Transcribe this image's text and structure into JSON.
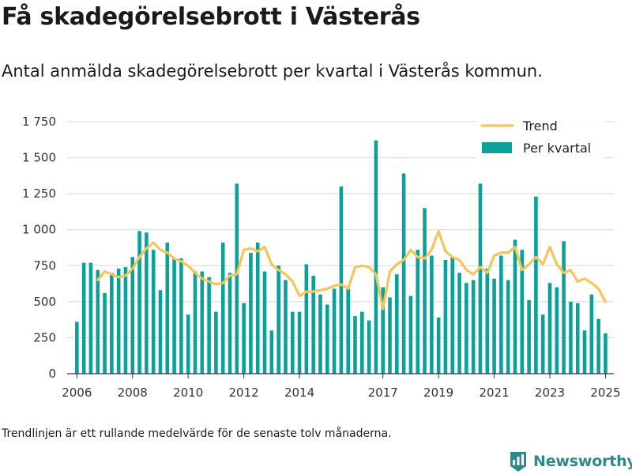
{
  "title": "Få skadegörelsebrott i Västerås",
  "subtitle": "Antal anmälda skadegörelsebrott per kvartal i Västerås kommun.",
  "footnote": "Trendlinjen är ett rullande medelvärde för de senaste tolv månaderna.",
  "brand": {
    "name": "Newsworthy",
    "icon": "newsworthy-logo-icon"
  },
  "colors": {
    "bar": "#0aa19a",
    "trend": "#f5c55a",
    "grid": "#d9d9d9",
    "axis": "#333333"
  },
  "chart_data": {
    "type": "bar",
    "title": "Få skadegörelsebrott i Västerås",
    "xlabel": "",
    "ylabel": "",
    "ylim": [
      0,
      1750
    ],
    "yticks": [
      0,
      250,
      500,
      750,
      1000,
      1250,
      1500,
      1750
    ],
    "ytick_labels": [
      "0",
      "250",
      "500",
      "750",
      "1 000",
      "1 250",
      "1 500",
      "1 750"
    ],
    "xlim": [
      2005.65,
      2025.3
    ],
    "xticks": [
      2006,
      2008,
      2010,
      2012,
      2014,
      2017,
      2019,
      2021,
      2023,
      2025
    ],
    "xtick_labels": [
      "2006",
      "2008",
      "2010",
      "2012",
      "2014",
      "2017",
      "2019",
      "2021",
      "2023",
      "2025"
    ],
    "grid": true,
    "legend": {
      "position": "top-right",
      "entries": [
        "Trend",
        "Per kvartal"
      ]
    },
    "series": [
      {
        "name": "Per kvartal",
        "type": "bar",
        "x": [
          2006.0,
          2006.25,
          2006.5,
          2006.75,
          2007.0,
          2007.25,
          2007.5,
          2007.75,
          2008.0,
          2008.25,
          2008.5,
          2008.75,
          2009.0,
          2009.25,
          2009.5,
          2009.75,
          2010.0,
          2010.25,
          2010.5,
          2010.75,
          2011.0,
          2011.25,
          2011.5,
          2011.75,
          2012.0,
          2012.25,
          2012.5,
          2012.75,
          2013.0,
          2013.25,
          2013.5,
          2013.75,
          2014.0,
          2014.25,
          2014.5,
          2014.75,
          2015.0,
          2015.25,
          2015.5,
          2015.75,
          2016.0,
          2016.25,
          2016.5,
          2016.75,
          2017.0,
          2017.25,
          2017.5,
          2017.75,
          2018.0,
          2018.25,
          2018.5,
          2018.75,
          2019.0,
          2019.25,
          2019.5,
          2019.75,
          2020.0,
          2020.25,
          2020.5,
          2020.75,
          2021.0,
          2021.25,
          2021.5,
          2021.75,
          2022.0,
          2022.25,
          2022.5,
          2022.75,
          2023.0,
          2023.25,
          2023.5,
          2023.75,
          2024.0,
          2024.25,
          2024.5,
          2024.75,
          2025.0
        ],
        "values": [
          360,
          770,
          770,
          720,
          560,
          700,
          730,
          740,
          810,
          990,
          980,
          860,
          580,
          910,
          800,
          800,
          410,
          710,
          710,
          670,
          430,
          910,
          700,
          1320,
          490,
          840,
          910,
          710,
          300,
          750,
          650,
          430,
          430,
          760,
          680,
          550,
          480,
          590,
          1300,
          590,
          400,
          430,
          370,
          1620,
          600,
          530,
          690,
          1390,
          540,
          860,
          1150,
          820,
          390,
          790,
          810,
          700,
          630,
          650,
          1320,
          730,
          660,
          820,
          650,
          930,
          860,
          510,
          1230,
          410,
          630,
          600,
          920,
          500,
          490,
          300,
          550,
          380,
          280
        ]
      },
      {
        "name": "Trend",
        "type": "line",
        "x": [
          2006.75,
          2007.0,
          2007.25,
          2007.5,
          2007.75,
          2008.0,
          2008.25,
          2008.5,
          2008.75,
          2009.0,
          2009.25,
          2009.5,
          2009.75,
          2010.0,
          2010.25,
          2010.5,
          2010.75,
          2011.0,
          2011.25,
          2011.5,
          2011.75,
          2012.0,
          2012.25,
          2012.5,
          2012.75,
          2013.0,
          2013.25,
          2013.5,
          2013.75,
          2014.0,
          2014.25,
          2014.5,
          2014.75,
          2015.0,
          2015.25,
          2015.5,
          2015.75,
          2016.0,
          2016.25,
          2016.5,
          2016.75,
          2017.0,
          2017.25,
          2017.5,
          2017.75,
          2018.0,
          2018.25,
          2018.5,
          2018.75,
          2019.0,
          2019.25,
          2019.5,
          2019.75,
          2020.0,
          2020.25,
          2020.5,
          2020.75,
          2021.0,
          2021.25,
          2021.5,
          2021.75,
          2022.0,
          2022.25,
          2022.5,
          2022.75,
          2023.0,
          2023.25,
          2023.5,
          2023.75,
          2024.0,
          2024.25,
          2024.5,
          2024.75,
          2025.0
        ],
        "values": [
          650,
          710,
          690,
          670,
          680,
          730,
          810,
          870,
          910,
          860,
          840,
          800,
          780,
          750,
          700,
          660,
          640,
          620,
          630,
          680,
          690,
          860,
          870,
          850,
          880,
          760,
          720,
          690,
          640,
          540,
          570,
          570,
          580,
          590,
          610,
          620,
          590,
          740,
          750,
          740,
          690,
          450,
          710,
          760,
          790,
          860,
          810,
          800,
          860,
          990,
          850,
          810,
          790,
          720,
          690,
          740,
          700,
          820,
          840,
          840,
          880,
          720,
          760,
          810,
          760,
          880,
          760,
          700,
          720,
          640,
          660,
          630,
          590,
          500
        ]
      }
    ]
  }
}
